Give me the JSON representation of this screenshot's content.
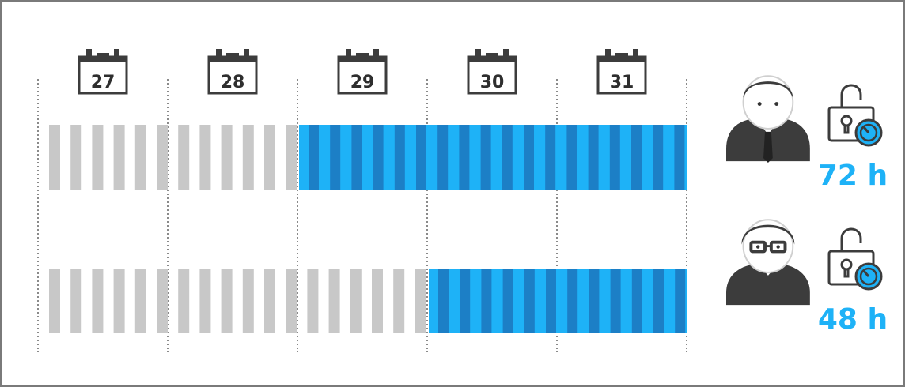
{
  "days": [
    "27",
    "28",
    "29",
    "30",
    "31"
  ],
  "users": [
    {
      "hours_label": "72 h",
      "hours": 72,
      "gray_segments": 2,
      "blue_segments": 3,
      "avatar": "businessman-avatar-icon",
      "lock": "unlocked-timer-icon"
    },
    {
      "hours_label": "48 h",
      "hours": 48,
      "gray_segments": 3,
      "blue_segments": 2,
      "avatar": "glasses-man-avatar-icon",
      "lock": "unlocked-timer-icon"
    }
  ],
  "colors": {
    "gray_stripe": "#c8c8c8",
    "blue_light": "#1eb2f7",
    "blue_dark": "#1c7fc6",
    "icon_dark": "#3c3c3c",
    "accent": "#1eb2f7"
  }
}
